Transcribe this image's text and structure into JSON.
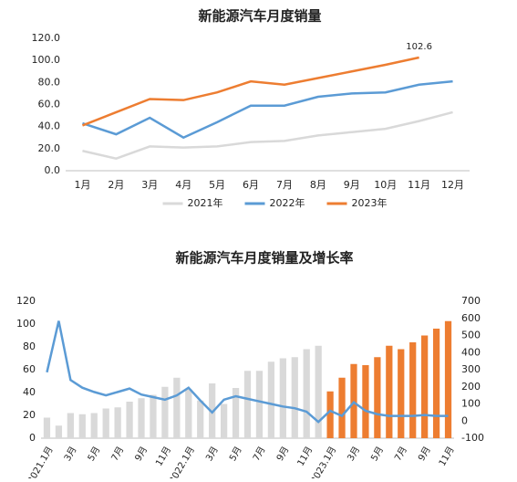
{
  "chart_data": [
    {
      "type": "line",
      "title": "新能源汽车月度销量",
      "categories": [
        "1月",
        "2月",
        "3月",
        "4月",
        "5月",
        "6月",
        "7月",
        "8月",
        "9月",
        "10月",
        "11月",
        "12月"
      ],
      "series": [
        {
          "name": "2021年",
          "color": "#d9d9d9",
          "values": [
            18,
            11,
            22,
            21,
            22,
            26,
            27,
            32,
            35,
            38,
            45,
            53
          ]
        },
        {
          "name": "2022年",
          "color": "#5b9bd5",
          "values": [
            43,
            33,
            48,
            30,
            44,
            59,
            59,
            67,
            70,
            71,
            78,
            81
          ]
        },
        {
          "name": "2023年",
          "color": "#ed7d31",
          "values": [
            41,
            53,
            65,
            64,
            71,
            81,
            78,
            84,
            90,
            96,
            102.6,
            null
          ],
          "value_labels": [
            null,
            null,
            null,
            null,
            null,
            null,
            null,
            null,
            null,
            null,
            "102.6",
            null
          ]
        }
      ],
      "ylim": [
        0,
        120
      ],
      "yticks": [
        {
          "value": 0,
          "label": "0.0"
        },
        {
          "value": 20,
          "label": "20.0"
        },
        {
          "value": 40,
          "label": "40.0"
        },
        {
          "value": 60,
          "label": "60.0"
        },
        {
          "value": 80,
          "label": "80.0"
        },
        {
          "value": 100,
          "label": "100.0"
        },
        {
          "value": 120,
          "label": "120.0"
        }
      ],
      "grid": false,
      "legend": "bottom"
    },
    {
      "type": "bar",
      "title": "新能源汽车月度销量及增长率",
      "categories": [
        "2021.1月",
        null,
        "3月",
        null,
        "5月",
        null,
        "7月",
        null,
        "9月",
        null,
        "11月",
        null,
        "2022.1月",
        null,
        "3月",
        null,
        "5月",
        null,
        "7月",
        null,
        "9月",
        null,
        "11月",
        null,
        "2023.1月",
        null,
        "3月",
        null,
        "5月",
        null,
        "7月",
        null,
        "9月",
        null,
        "11月"
      ],
      "series": [
        {
          "type": "bar",
          "color": "#d9d9d9",
          "values": [
            18,
            11,
            22,
            21,
            22,
            26,
            27,
            32,
            35,
            38,
            45,
            53,
            43,
            33,
            48,
            30,
            44,
            59,
            59,
            67,
            70,
            71,
            78,
            81,
            null,
            null,
            null,
            null,
            null,
            null,
            null,
            null,
            null,
            null,
            null
          ]
        },
        {
          "type": "bar",
          "color": "#ed7d31",
          "values": [
            null,
            null,
            null,
            null,
            null,
            null,
            null,
            null,
            null,
            null,
            null,
            null,
            null,
            null,
            null,
            null,
            null,
            null,
            null,
            null,
            null,
            null,
            null,
            null,
            41,
            53,
            65,
            64,
            71,
            81,
            78,
            84,
            90,
            96,
            102.6
          ]
        },
        {
          "type": "line",
          "axis": "y2",
          "color": "#5b9bd5",
          "values": [
            285,
            585,
            240,
            195,
            170,
            150,
            170,
            190,
            155,
            140,
            125,
            150,
            195,
            120,
            50,
            125,
            145,
            130,
            115,
            100,
            85,
            75,
            55,
            -5,
            60,
            30,
            110,
            60,
            40,
            30,
            30,
            30,
            35,
            30,
            30
          ]
        }
      ],
      "ylim": [
        0,
        120
      ],
      "yticks": [
        0,
        20,
        40,
        60,
        80,
        100,
        120
      ],
      "y2lim": [
        -100,
        700
      ],
      "y2ticks": [
        -100,
        0,
        100,
        200,
        300,
        400,
        500,
        600,
        700
      ],
      "grid": false
    }
  ]
}
